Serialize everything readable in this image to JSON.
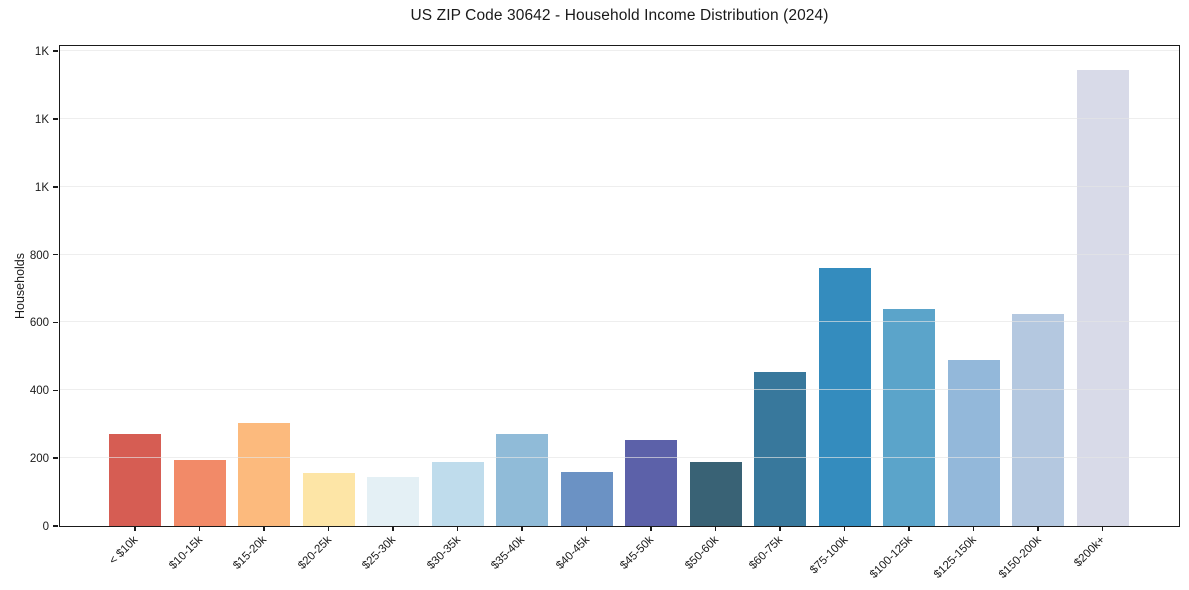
{
  "chart_data": {
    "type": "bar",
    "title": "US ZIP Code 30642 - Household Income Distribution (2024)",
    "xlabel": "",
    "ylabel": "Households",
    "categories": [
      "< $10k",
      "$10-15k",
      "$15-20k",
      "$20-25k",
      "$25-30k",
      "$30-35k",
      "$35-40k",
      "$40-45k",
      "$45-50k",
      "$50-60k",
      "$60-75k",
      "$75-100k",
      "$100-125k",
      "$125-150k",
      "$150-200k",
      "$200k+"
    ],
    "values": [
      270,
      195,
      305,
      155,
      145,
      190,
      270,
      160,
      255,
      190,
      455,
      760,
      640,
      490,
      625,
      1345
    ],
    "bar_colors": [
      "#d65d53",
      "#f28a68",
      "#fcba7d",
      "#fde5a6",
      "#e4f0f5",
      "#bfdcec",
      "#90bbd8",
      "#6b92c4",
      "#5c61a9",
      "#396275",
      "#38789c",
      "#348cbe",
      "#5ba4ca",
      "#93b8da",
      "#b4c8e0",
      "#d8dae8"
    ],
    "ylim": [
      0,
      1410
    ],
    "yticks": {
      "values": [
        0,
        200,
        400,
        600,
        800,
        1000,
        1200,
        1400
      ],
      "labels": [
        "0",
        "200",
        "400",
        "600",
        "800",
        "1K",
        "1K",
        "1K"
      ]
    },
    "x_tick_rotation": 45,
    "grid": "horizontal",
    "legend": "none",
    "styles": {
      "axis_color": "#1a1a1a",
      "grid_color": "rgba(229,229,229,0.65)",
      "text_color": "#1a1a1a",
      "background": "#ffffff"
    }
  }
}
